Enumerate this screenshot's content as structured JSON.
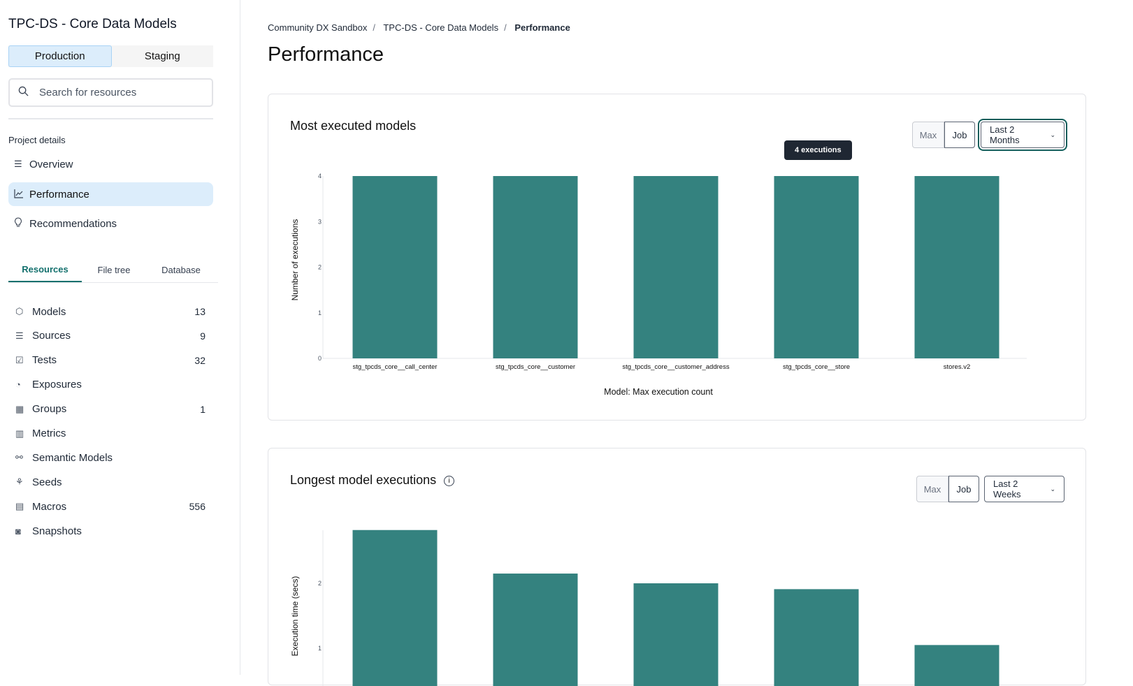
{
  "sidebar": {
    "project_title": "TPC-DS - Core Data Models",
    "env_tabs": [
      {
        "label": "Production",
        "active": true
      },
      {
        "label": "Staging",
        "active": false
      }
    ],
    "search_placeholder": "Search for resources",
    "section_label": "Project details",
    "nav": [
      {
        "label": "Overview",
        "icon": "list-icon"
      },
      {
        "label": "Performance",
        "icon": "line-chart-icon",
        "active": true
      },
      {
        "label": "Recommendations",
        "icon": "lightbulb-icon"
      }
    ],
    "tabs": [
      {
        "label": "Resources",
        "active": true
      },
      {
        "label": "File tree"
      },
      {
        "label": "Database"
      }
    ],
    "resources": [
      {
        "label": "Models",
        "count": "13",
        "icon": "cube-icon"
      },
      {
        "label": "Sources",
        "count": "9",
        "icon": "database-icon"
      },
      {
        "label": "Tests",
        "count": "32",
        "icon": "clipboard-check-icon"
      },
      {
        "label": "Exposures",
        "count": "",
        "icon": "gauge-icon"
      },
      {
        "label": "Groups",
        "count": "1",
        "icon": "grid-icon"
      },
      {
        "label": "Metrics",
        "count": "",
        "icon": "bar-chart-icon"
      },
      {
        "label": "Semantic Models",
        "count": "",
        "icon": "nodes-icon"
      },
      {
        "label": "Seeds",
        "count": "",
        "icon": "sprout-icon"
      },
      {
        "label": "Macros",
        "count": "556",
        "icon": "file-icon"
      },
      {
        "label": "Snapshots",
        "count": "",
        "icon": "camera-icon"
      }
    ]
  },
  "breadcrumb": [
    "Community DX Sandbox",
    "TPC-DS - Core Data Models",
    "Performance"
  ],
  "page_title": "Performance",
  "accent_color": "#13706d",
  "bar_color": "#34827f",
  "cards": [
    {
      "title": "Most executed models",
      "toggle": [
        "Max",
        "Job"
      ],
      "range": "Last 2 Months",
      "tooltip": "4 executions"
    },
    {
      "title": "Longest model executions",
      "toggle": [
        "Max",
        "Job"
      ],
      "range": "Last 2 Weeks"
    }
  ],
  "chart_data": [
    {
      "type": "bar",
      "title": "",
      "xlabel": "Model: Max execution count",
      "ylabel": "Number of executions",
      "categories": [
        "stg_tpcds_core__call_center",
        "stg_tpcds_core__customer",
        "stg_tpcds_core__customer_address",
        "stg_tpcds_core__store",
        "stores.v2"
      ],
      "values": [
        4,
        4,
        4,
        4,
        4
      ],
      "ylim": [
        0,
        4
      ],
      "yticks": [
        0,
        1,
        2,
        3,
        4
      ],
      "grid": false
    },
    {
      "type": "bar",
      "title": "",
      "xlabel": "",
      "ylabel": "Execution time (secs)",
      "values": [
        2.82,
        2.15,
        2.0,
        1.91,
        1.05
      ],
      "yticks": [
        1,
        2
      ],
      "grid": false
    }
  ]
}
